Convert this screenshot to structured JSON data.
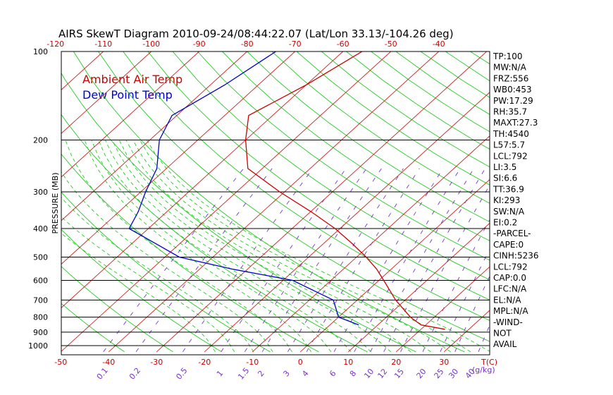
{
  "chart_data": {
    "type": "line",
    "title": "AIRS SkewT Diagram 2010-09-24/08:44:22.07 (Lat/Lon 33.13/-104.26 deg)",
    "ylabel": "PRESSURE (MB)",
    "xlabel": "T(C)",
    "mixing_ratio_unit": "(g/kg)",
    "pressure_ticks": [
      100,
      200,
      300,
      400,
      500,
      600,
      700,
      800,
      900,
      1000
    ],
    "top_temp_ticks": [
      -120,
      -110,
      -100,
      -90,
      -80,
      -70,
      -60,
      -50,
      -40
    ],
    "bottom_temp_ticks": [
      -50,
      -40,
      -30,
      -20,
      -10,
      0,
      10,
      20,
      30
    ],
    "mixing_ratio_ticks": [
      "0.1",
      "0.2",
      "0.5",
      "1",
      "1.5",
      "2",
      "3",
      "4",
      "6",
      "8",
      "10",
      "12",
      "15",
      "20",
      "25",
      "30",
      "40"
    ],
    "ylim": [
      1050,
      100
    ],
    "legend": [
      {
        "label": "Ambient Air Temp",
        "color": "#cc0000"
      },
      {
        "label": "Dew Point Temp",
        "color": "#0000cc"
      }
    ],
    "series": [
      {
        "name": "Ambient Air Temp",
        "color": "#cc0000",
        "points": [
          {
            "p": 100,
            "t": -56
          },
          {
            "p": 130,
            "t": -60
          },
          {
            "p": 165,
            "t": -65
          },
          {
            "p": 200,
            "t": -60
          },
          {
            "p": 250,
            "t": -53
          },
          {
            "p": 300,
            "t": -41
          },
          {
            "p": 350,
            "t": -30
          },
          {
            "p": 400,
            "t": -21
          },
          {
            "p": 450,
            "t": -14
          },
          {
            "p": 500,
            "t": -8
          },
          {
            "p": 550,
            "t": -3
          },
          {
            "p": 600,
            "t": 1
          },
          {
            "p": 700,
            "t": 8
          },
          {
            "p": 800,
            "t": 15
          },
          {
            "p": 850,
            "t": 19
          },
          {
            "p": 880,
            "t": 25
          }
        ]
      },
      {
        "name": "Dew Point Temp",
        "color": "#0000cc",
        "points": [
          {
            "p": 100,
            "t": -74
          },
          {
            "p": 130,
            "t": -77
          },
          {
            "p": 165,
            "t": -81
          },
          {
            "p": 200,
            "t": -78
          },
          {
            "p": 250,
            "t": -72
          },
          {
            "p": 300,
            "t": -69
          },
          {
            "p": 350,
            "t": -66
          },
          {
            "p": 400,
            "t": -64
          },
          {
            "p": 450,
            "t": -55
          },
          {
            "p": 500,
            "t": -47
          },
          {
            "p": 550,
            "t": -33
          },
          {
            "p": 600,
            "t": -18
          },
          {
            "p": 700,
            "t": -5
          },
          {
            "p": 800,
            "t": 0
          },
          {
            "p": 850,
            "t": 6
          }
        ]
      }
    ],
    "side_panel": [
      "TP:100",
      "MW:N/A",
      "FRZ:556",
      "WB0:453",
      "PW:17.29",
      "RH:35.7",
      "MAXT:27.3",
      "TH:4540",
      "L57:5.7",
      "LCL:792",
      "LI:3.5",
      "SI:6.6",
      "TT:36.9",
      "KI:293",
      "SW:N/A",
      "EI:0.2",
      "-PARCEL-",
      "CAPE:0",
      "CINH:5236",
      "LCL:792",
      "CAP:0.0",
      "LFC:N/A",
      "EL:N/A",
      "MPL:N/A",
      "-WIND-",
      " NOT",
      "AVAIL"
    ],
    "grid": true
  }
}
